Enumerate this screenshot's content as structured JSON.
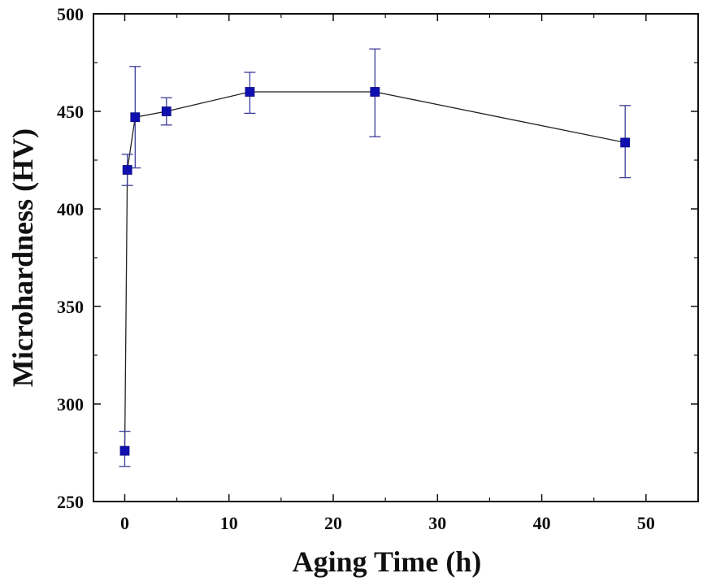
{
  "chart_data": {
    "type": "scatter",
    "title": "",
    "xlabel": "Aging Time (h)",
    "ylabel": "Microhardness (HV)",
    "xlim": [
      -3,
      55
    ],
    "ylim": [
      250,
      500
    ],
    "xticks": [
      0,
      10,
      20,
      30,
      40,
      50
    ],
    "yticks": [
      250,
      300,
      350,
      400,
      450,
      500
    ],
    "xtick_labels": [
      "0",
      "10",
      "20",
      "30",
      "40",
      "50"
    ],
    "ytick_labels": [
      "250",
      "300",
      "350",
      "400",
      "450",
      "500"
    ],
    "grid": false,
    "connected": true,
    "series": [
      {
        "name": "Microhardness",
        "marker": "square",
        "marker_color": "#1010b0",
        "line_color": "#222222",
        "errorbar_color": "#3d3d9a",
        "points": [
          {
            "x": 0,
            "y": 276,
            "err_low": 268,
            "err_high": 286
          },
          {
            "x": 0.25,
            "y": 420,
            "err_low": 412,
            "err_high": 428
          },
          {
            "x": 1,
            "y": 447,
            "err_low": 421,
            "err_high": 473
          },
          {
            "x": 4,
            "y": 450,
            "err_low": 443,
            "err_high": 457
          },
          {
            "x": 12,
            "y": 460,
            "err_low": 449,
            "err_high": 470
          },
          {
            "x": 24,
            "y": 460,
            "err_low": 437,
            "err_high": 482
          },
          {
            "x": 48,
            "y": 434,
            "err_low": 416,
            "err_high": 453
          }
        ]
      }
    ]
  }
}
